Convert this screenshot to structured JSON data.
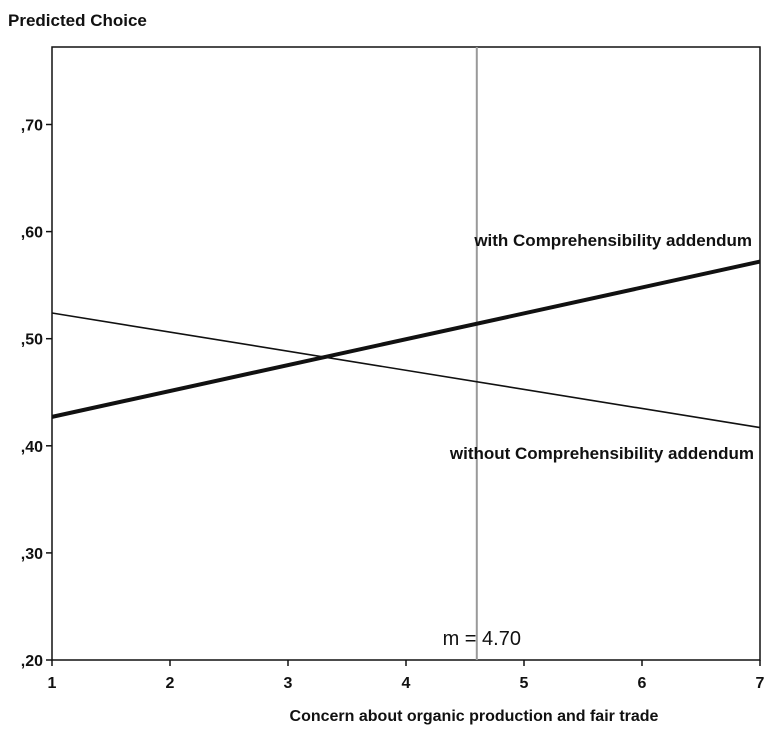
{
  "chart_data": {
    "type": "line",
    "title": "",
    "ylabel": "Predicted Choice",
    "xlabel": "Concern about organic production and fair trade",
    "xlim": [
      1,
      7
    ],
    "ylim": [
      0.2,
      0.78
    ],
    "x_ticks": [
      1,
      2,
      3,
      4,
      5,
      6,
      7
    ],
    "x_tick_labels": [
      "1",
      "2",
      "3",
      "4",
      "5",
      "6",
      "7"
    ],
    "y_ticks": [
      0.2,
      0.3,
      0.4,
      0.5,
      0.6,
      0.7
    ],
    "y_tick_labels": [
      ",20",
      ",30",
      ",40",
      ",50",
      ",60",
      ",70"
    ],
    "grid": false,
    "series": [
      {
        "name": "with Comprehensibility addendum",
        "x": [
          1,
          7
        ],
        "y": [
          0.427,
          0.572
        ],
        "color": "#111111",
        "line_weight": "thick"
      },
      {
        "name": "without Comprehensibility addendum",
        "x": [
          1,
          7
        ],
        "y": [
          0.524,
          0.417
        ],
        "color": "#111111",
        "line_weight": "thin"
      }
    ],
    "reference_line": {
      "orientation": "vertical",
      "x": 4.6,
      "color": "#999999",
      "label": "m = 4.70"
    }
  }
}
